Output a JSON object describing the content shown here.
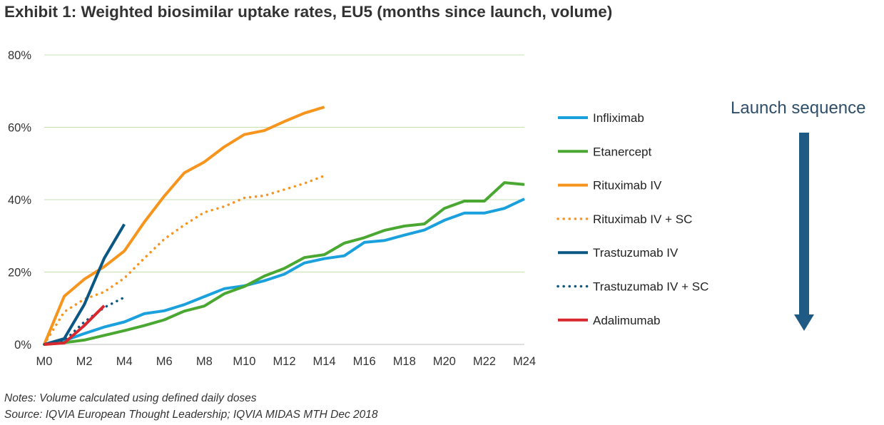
{
  "title": "Exhibit 1: Weighted biosimilar uptake rates, EU5 (months since launch, volume)",
  "notes": "Notes: Volume calculated using defined daily doses",
  "source": "Source: IQVIA European Thought Leadership; IQVIA MIDAS MTH Dec 2018",
  "annotation": {
    "label": "Launch sequence",
    "color": "#1f5a84"
  },
  "chart_data": {
    "type": "line",
    "xlabel": "",
    "ylabel": "",
    "x_tick_labels": [
      "M0",
      "M2",
      "M4",
      "M6",
      "M8",
      "M10",
      "M12",
      "M14",
      "M16",
      "M18",
      "M20",
      "M22",
      "M24"
    ],
    "x_ticks": [
      0,
      2,
      4,
      6,
      8,
      10,
      12,
      14,
      16,
      18,
      20,
      22,
      24
    ],
    "xlim": [
      0,
      24
    ],
    "y_tick_labels": [
      "0%",
      "20%",
      "40%",
      "60%",
      "80%"
    ],
    "y_ticks": [
      0,
      20,
      40,
      60,
      80
    ],
    "ylim": [
      0,
      80
    ],
    "grid": true,
    "legend_position": "right",
    "series": [
      {
        "name": "Infliximab",
        "color": "#1aa0dc",
        "style": "solid",
        "x": [
          0,
          1,
          2,
          3,
          4,
          5,
          6,
          7,
          8,
          9,
          10,
          11,
          12,
          13,
          14,
          15,
          16,
          17,
          18,
          19,
          20,
          21,
          22,
          23,
          24
        ],
        "y": [
          0,
          1,
          3,
          4.8,
          6.2,
          8.5,
          9.3,
          11,
          13.2,
          15.4,
          16.2,
          17.6,
          19.4,
          22.5,
          23.7,
          24.5,
          28.2,
          28.7,
          30.2,
          31.6,
          34.3,
          36.3,
          36.3,
          37.6,
          40.2
        ]
      },
      {
        "name": "Etanercept",
        "color": "#4aa832",
        "style": "solid",
        "x": [
          0,
          1,
          2,
          3,
          4,
          5,
          6,
          7,
          8,
          9,
          10,
          11,
          12,
          13,
          14,
          15,
          16,
          17,
          18,
          19,
          20,
          21,
          22,
          23,
          24
        ],
        "y": [
          0,
          0.5,
          1.2,
          2.5,
          3.8,
          5.2,
          6.8,
          9.2,
          10.6,
          14,
          16,
          18.9,
          21,
          24,
          24.8,
          28,
          29.5,
          31.5,
          32.7,
          33.3,
          37.6,
          39.6,
          39.6,
          44.7,
          44.2
        ]
      },
      {
        "name": "Rituximab IV",
        "color": "#f7941d",
        "style": "solid",
        "x": [
          0,
          1,
          2,
          3,
          4,
          5,
          6,
          7,
          8,
          9,
          10,
          11,
          12,
          13,
          14
        ],
        "y": [
          0,
          13.3,
          18,
          21.5,
          25.8,
          33.8,
          41,
          47.4,
          50.4,
          54.6,
          58,
          59.1,
          61.6,
          63.9,
          65.6
        ]
      },
      {
        "name": "Rituximab IV + SC",
        "color": "#f7941d",
        "style": "dotted",
        "x": [
          0,
          1,
          2,
          3,
          4,
          5,
          6,
          7,
          8,
          9,
          10,
          11,
          12,
          13,
          14
        ],
        "y": [
          0,
          9,
          12.5,
          14.5,
          18.3,
          23.8,
          29.1,
          33,
          36.5,
          38.1,
          40.5,
          41.1,
          42.8,
          44.5,
          46.6
        ]
      },
      {
        "name": "Trastuzumab IV",
        "color": "#0b5783",
        "style": "solid",
        "x": [
          0,
          1,
          2,
          3,
          4
        ],
        "y": [
          0,
          1.6,
          11,
          23.8,
          33.2
        ]
      },
      {
        "name": "Trastuzumab IV + SC",
        "color": "#0b5783",
        "style": "dotted",
        "x": [
          0,
          1,
          2,
          3,
          4
        ],
        "y": [
          0,
          1,
          6.2,
          10.2,
          13
        ]
      },
      {
        "name": "Adalimumab",
        "color": "#d7282f",
        "style": "solid",
        "x": [
          0,
          1,
          2,
          3
        ],
        "y": [
          0,
          0.4,
          5.2,
          10.7
        ]
      }
    ]
  }
}
